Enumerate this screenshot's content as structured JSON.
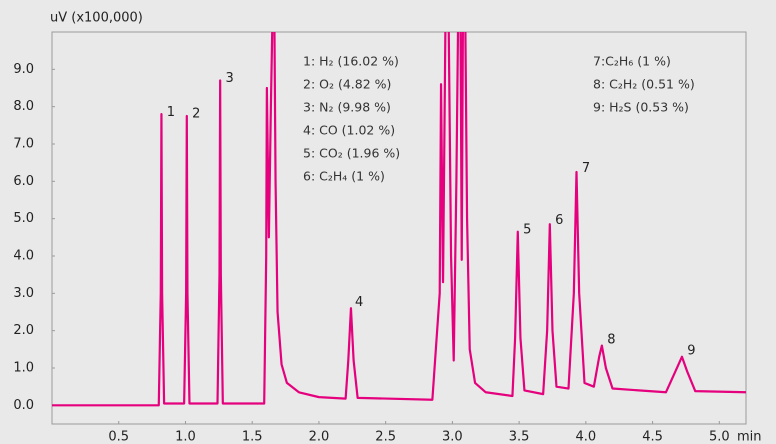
{
  "chart_data": {
    "type": "line",
    "y_axis_label": "uV (x100,000)",
    "x_axis_label": "min",
    "color": "#e5007d",
    "xlim": [
      0,
      5.2
    ],
    "ylim": [
      -0.5,
      10
    ],
    "xticks": [
      0.5,
      {
        "value": 1,
        "label": "1.0"
      },
      1.5,
      {
        "value": 2,
        "label": "2.0"
      },
      2.5,
      {
        "value": 3,
        "label": "3.0"
      },
      3.5,
      {
        "value": 4,
        "label": "4.0"
      },
      4.5,
      {
        "value": 5,
        "label": "5.0"
      }
    ],
    "yticks": [
      {
        "value": 0,
        "label": "0.0"
      },
      {
        "value": 1,
        "label": "1.0"
      },
      {
        "value": 2,
        "label": "2.0"
      },
      {
        "value": 3,
        "label": "3.0"
      },
      {
        "value": 4,
        "label": "4.0"
      },
      {
        "value": 5,
        "label": "5.0"
      },
      {
        "value": 6,
        "label": "6.0"
      },
      {
        "value": 7,
        "label": "7.0"
      },
      {
        "value": 8,
        "label": "8.0"
      },
      {
        "value": 9,
        "label": "9.0"
      }
    ],
    "x": [
      0,
      0.8,
      0.815,
      0.82,
      0.825,
      0.84,
      0.99,
      1.005,
      1.01,
      1.015,
      1.03,
      1.24,
      1.255,
      1.26,
      1.265,
      1.28,
      1.59,
      1.605,
      1.61,
      1.625,
      1.64,
      1.655,
      1.665,
      1.675,
      1.69,
      1.72,
      1.76,
      1.85,
      2.0,
      2.2,
      2.22,
      2.24,
      2.26,
      2.29,
      2.85,
      2.905,
      2.915,
      2.93,
      2.95,
      2.97,
      2.99,
      3.01,
      3.03,
      3.045,
      3.06,
      3.07,
      3.08,
      3.095,
      3.11,
      3.13,
      3.17,
      3.25,
      3.45,
      3.47,
      3.49,
      3.51,
      3.54,
      3.68,
      3.71,
      3.73,
      3.75,
      3.78,
      3.87,
      3.91,
      3.93,
      3.95,
      3.99,
      4.06,
      4.1,
      4.12,
      4.15,
      4.2,
      4.6,
      4.67,
      4.72,
      4.76,
      4.82,
      5.2
    ],
    "values": [
      0,
      0,
      3,
      7.8,
      3,
      0.05,
      0.05,
      3,
      7.75,
      3,
      0.05,
      0.05,
      3.5,
      8.7,
      3.5,
      0.05,
      0.05,
      4,
      8.5,
      4.5,
      8,
      11,
      11,
      6,
      2.5,
      1.1,
      0.6,
      0.35,
      0.22,
      0.18,
      1.2,
      2.6,
      1.2,
      0.2,
      0.15,
      3,
      8.6,
      3.3,
      11,
      11,
      4,
      1.2,
      6,
      11,
      11,
      3.9,
      11,
      11,
      5,
      1.5,
      0.6,
      0.35,
      0.25,
      1.8,
      4.65,
      1.8,
      0.4,
      0.3,
      2,
      4.85,
      2,
      0.5,
      0.45,
      3,
      6.25,
      3,
      0.6,
      0.5,
      1.3,
      1.6,
      1,
      0.45,
      0.35,
      0.9,
      1.3,
      0.9,
      0.38,
      0.35
    ],
    "peak_labels": [
      {
        "text": "1",
        "x": 0.86,
        "y": 7.85
      },
      {
        "text": "2",
        "x": 1.05,
        "y": 7.8
      },
      {
        "text": "3",
        "x": 1.3,
        "y": 8.75
      },
      {
        "text": "4",
        "x": 2.27,
        "y": 2.75
      },
      {
        "text": "5",
        "x": 3.53,
        "y": 4.7
      },
      {
        "text": "6",
        "x": 3.77,
        "y": 4.95
      },
      {
        "text": "7",
        "x": 3.97,
        "y": 6.35
      },
      {
        "text": "8",
        "x": 4.16,
        "y": 1.75
      },
      {
        "text": "9",
        "x": 4.76,
        "y": 1.45
      }
    ],
    "notes": [
      [
        "1: H₂ (16.02 %)",
        "2: O₂ (4.82 %)",
        "3: N₂ (9.98 %)",
        "4: CO (1.02 %)",
        "5: CO₂ (1.96 %)",
        "6: C₂H₄ (1 %)"
      ],
      [
        "7:C₂H₆ (1 %)",
        "8: C₂H₂ (0.51 %)",
        "9: H₂S (0.53 %)"
      ]
    ]
  }
}
